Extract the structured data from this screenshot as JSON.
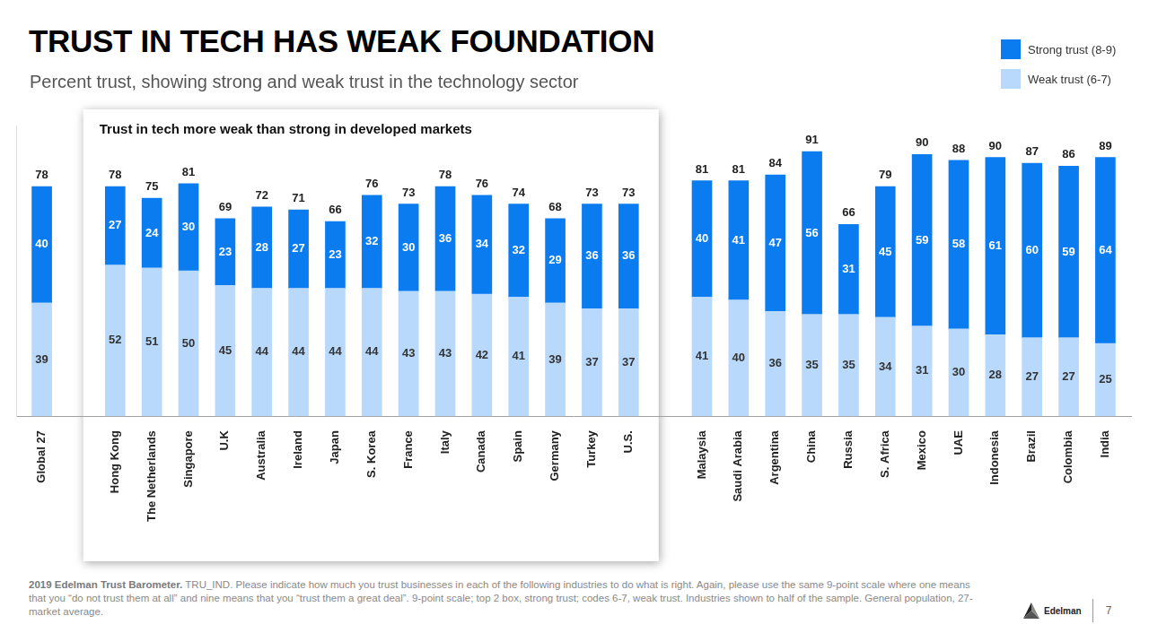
{
  "chart_data": {
    "type": "bar",
    "title": "TRUST IN TECH HAS WEAK FOUNDATION",
    "subtitle": "Percent trust, showing strong and weak trust in the technology sector",
    "annotation": "Trust in tech more weak than strong in developed markets",
    "categories": [
      "Global 27",
      "Hong Kong",
      "The Netherlands",
      "Singapore",
      "U.K",
      "Australia",
      "Ireland",
      "Japan",
      "S. Korea",
      "France",
      "Italy",
      "Canada",
      "Spain",
      "Germany",
      "Turkey",
      "U.S.",
      "Malaysia",
      "Saudi Arabia",
      "Argentina",
      "China",
      "Russia",
      "S. Africa",
      "Mexico",
      "UAE",
      "Indonesia",
      "Brazil",
      "Colombia",
      "India"
    ],
    "series": [
      {
        "name": "Strong trust (8-9)",
        "color": "#0b7bf0",
        "values": [
          40,
          27,
          24,
          30,
          23,
          28,
          27,
          23,
          32,
          30,
          36,
          34,
          32,
          29,
          36,
          36,
          40,
          41,
          47,
          56,
          31,
          45,
          59,
          58,
          61,
          60,
          59,
          64
        ]
      },
      {
        "name": "Weak trust (6-7)",
        "color": "#b8d9fb",
        "values": [
          39,
          52,
          51,
          50,
          45,
          44,
          44,
          44,
          44,
          43,
          43,
          42,
          41,
          39,
          37,
          37,
          41,
          40,
          36,
          35,
          35,
          34,
          31,
          30,
          28,
          27,
          27,
          25
        ]
      }
    ],
    "totals": [
      78,
      78,
      75,
      81,
      69,
      72,
      71,
      66,
      76,
      73,
      78,
      76,
      74,
      68,
      73,
      73,
      81,
      81,
      84,
      91,
      66,
      79,
      90,
      88,
      90,
      87,
      86,
      89
    ],
    "stacked": true,
    "data_labels": true,
    "legend": "upper right",
    "grid": false,
    "tick_labels": "x",
    "ylim": [
      0,
      100
    ],
    "yticks": [],
    "source": "2019 Edelman Trust Barometer.",
    "footnote": "TRU_IND. Please indicate how much you trust businesses in each of the following industries to do what is right. Again, please use the same 9-point scale where one means that you “do not trust them at all” and nine means that you “trust them a great deal”. 9-point scale; top 2 box, strong trust; codes 6-7, weak trust. Industries shown to half of the sample. General population, 27-market average.",
    "logo": "Edelman",
    "page": "7"
  }
}
